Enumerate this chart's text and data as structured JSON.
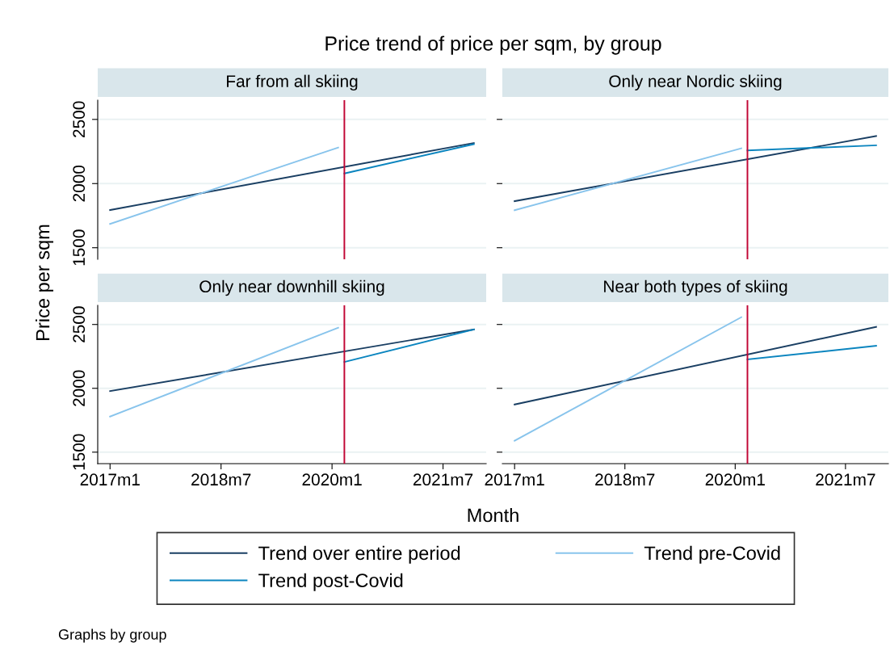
{
  "chart_data": [
    {
      "type": "line",
      "title": "Far from all skiing",
      "annotations": [
        "Price trend of price per sqm, by group",
        "Graphs by group"
      ],
      "ylabel": "Price per sqm",
      "legend": "bottom",
      "tick_labels": "y",
      "grid": "y",
      "xlim": [
        "2016-11",
        "2022-02"
      ],
      "ylim": [
        1410,
        2650
      ],
      "yticks": [
        1500,
        2000,
        2500
      ],
      "ref_lines": [
        {
          "axis": "x",
          "value": "2020-03",
          "color": "#c10534"
        }
      ],
      "series": [
        {
          "name": "Trend over entire period",
          "color": "#1a3f63",
          "x": [
            "2017-01",
            "2021-12"
          ],
          "values": [
            1794,
            2316
          ]
        },
        {
          "name": "Trend pre-Covid",
          "color": "#88c4ec",
          "x": [
            "2017-01",
            "2020-02"
          ],
          "values": [
            1686,
            2281
          ]
        },
        {
          "name": "Trend post-Covid",
          "color": "#0b85bf",
          "x": [
            "2020-03",
            "2021-12"
          ],
          "values": [
            2079,
            2307
          ]
        }
      ]
    },
    {
      "type": "line",
      "title": "Only near Nordic skiing",
      "tick_labels": false,
      "grid": "y",
      "xlim": [
        "2016-11",
        "2022-02"
      ],
      "ylim": [
        1410,
        2650
      ],
      "yticks": [
        1500,
        2000,
        2500
      ],
      "ref_lines": [
        {
          "axis": "x",
          "value": "2020-03",
          "color": "#c10534"
        }
      ],
      "series": [
        {
          "color": "#1a3f63",
          "x": [
            "2017-01",
            "2021-12"
          ],
          "values": [
            1863,
            2370
          ]
        },
        {
          "color": "#88c4ec",
          "x": [
            "2017-01",
            "2020-02"
          ],
          "values": [
            1792,
            2275
          ]
        },
        {
          "color": "#0b85bf",
          "x": [
            "2020-03",
            "2021-12"
          ],
          "values": [
            2258,
            2298
          ]
        }
      ]
    },
    {
      "type": "line",
      "title": "Only near downhill skiing",
      "xlabel": "Month",
      "grid": "y",
      "xlim": [
        "2016-11",
        "2022-02"
      ],
      "xticks": [
        {
          "value": "2017-01",
          "label": "2017m1"
        },
        {
          "value": "2018-07",
          "label": "2018m7"
        },
        {
          "value": "2020-01",
          "label": "2020m1"
        },
        {
          "value": "2021-07",
          "label": "2021m7"
        }
      ],
      "ylim": [
        1410,
        2650
      ],
      "yticks": [
        1500,
        2000,
        2500
      ],
      "ref_lines": [
        {
          "axis": "x",
          "value": "2020-03",
          "color": "#c10534"
        }
      ],
      "series": [
        {
          "color": "#1a3f63",
          "x": [
            "2017-01",
            "2021-12"
          ],
          "values": [
            1978,
            2461
          ]
        },
        {
          "color": "#88c4ec",
          "x": [
            "2017-01",
            "2020-02"
          ],
          "values": [
            1779,
            2474
          ]
        },
        {
          "color": "#0b85bf",
          "x": [
            "2020-03",
            "2021-12"
          ],
          "values": [
            2206,
            2461
          ]
        }
      ]
    },
    {
      "type": "line",
      "title": "Near both types of skiing",
      "tick_labels": "x",
      "grid": "y",
      "xlim": [
        "2016-11",
        "2022-02"
      ],
      "xticks": [
        {
          "value": "2017-01",
          "label": "2017m1"
        },
        {
          "value": "2018-07",
          "label": "2018m7"
        },
        {
          "value": "2020-01",
          "label": "2020m1"
        },
        {
          "value": "2021-07",
          "label": "2021m7"
        }
      ],
      "ylim": [
        1410,
        2650
      ],
      "yticks": [
        1500,
        2000,
        2500
      ],
      "ref_lines": [
        {
          "axis": "x",
          "value": "2020-03",
          "color": "#c10534"
        }
      ],
      "series": [
        {
          "color": "#1a3f63",
          "x": [
            "2017-01",
            "2021-12"
          ],
          "values": [
            1873,
            2481
          ]
        },
        {
          "color": "#88c4ec",
          "x": [
            "2017-01",
            "2020-02"
          ],
          "values": [
            1589,
            2557
          ]
        },
        {
          "color": "#0b85bf",
          "x": [
            "2020-03",
            "2021-12"
          ],
          "values": [
            2226,
            2333
          ]
        }
      ]
    }
  ]
}
